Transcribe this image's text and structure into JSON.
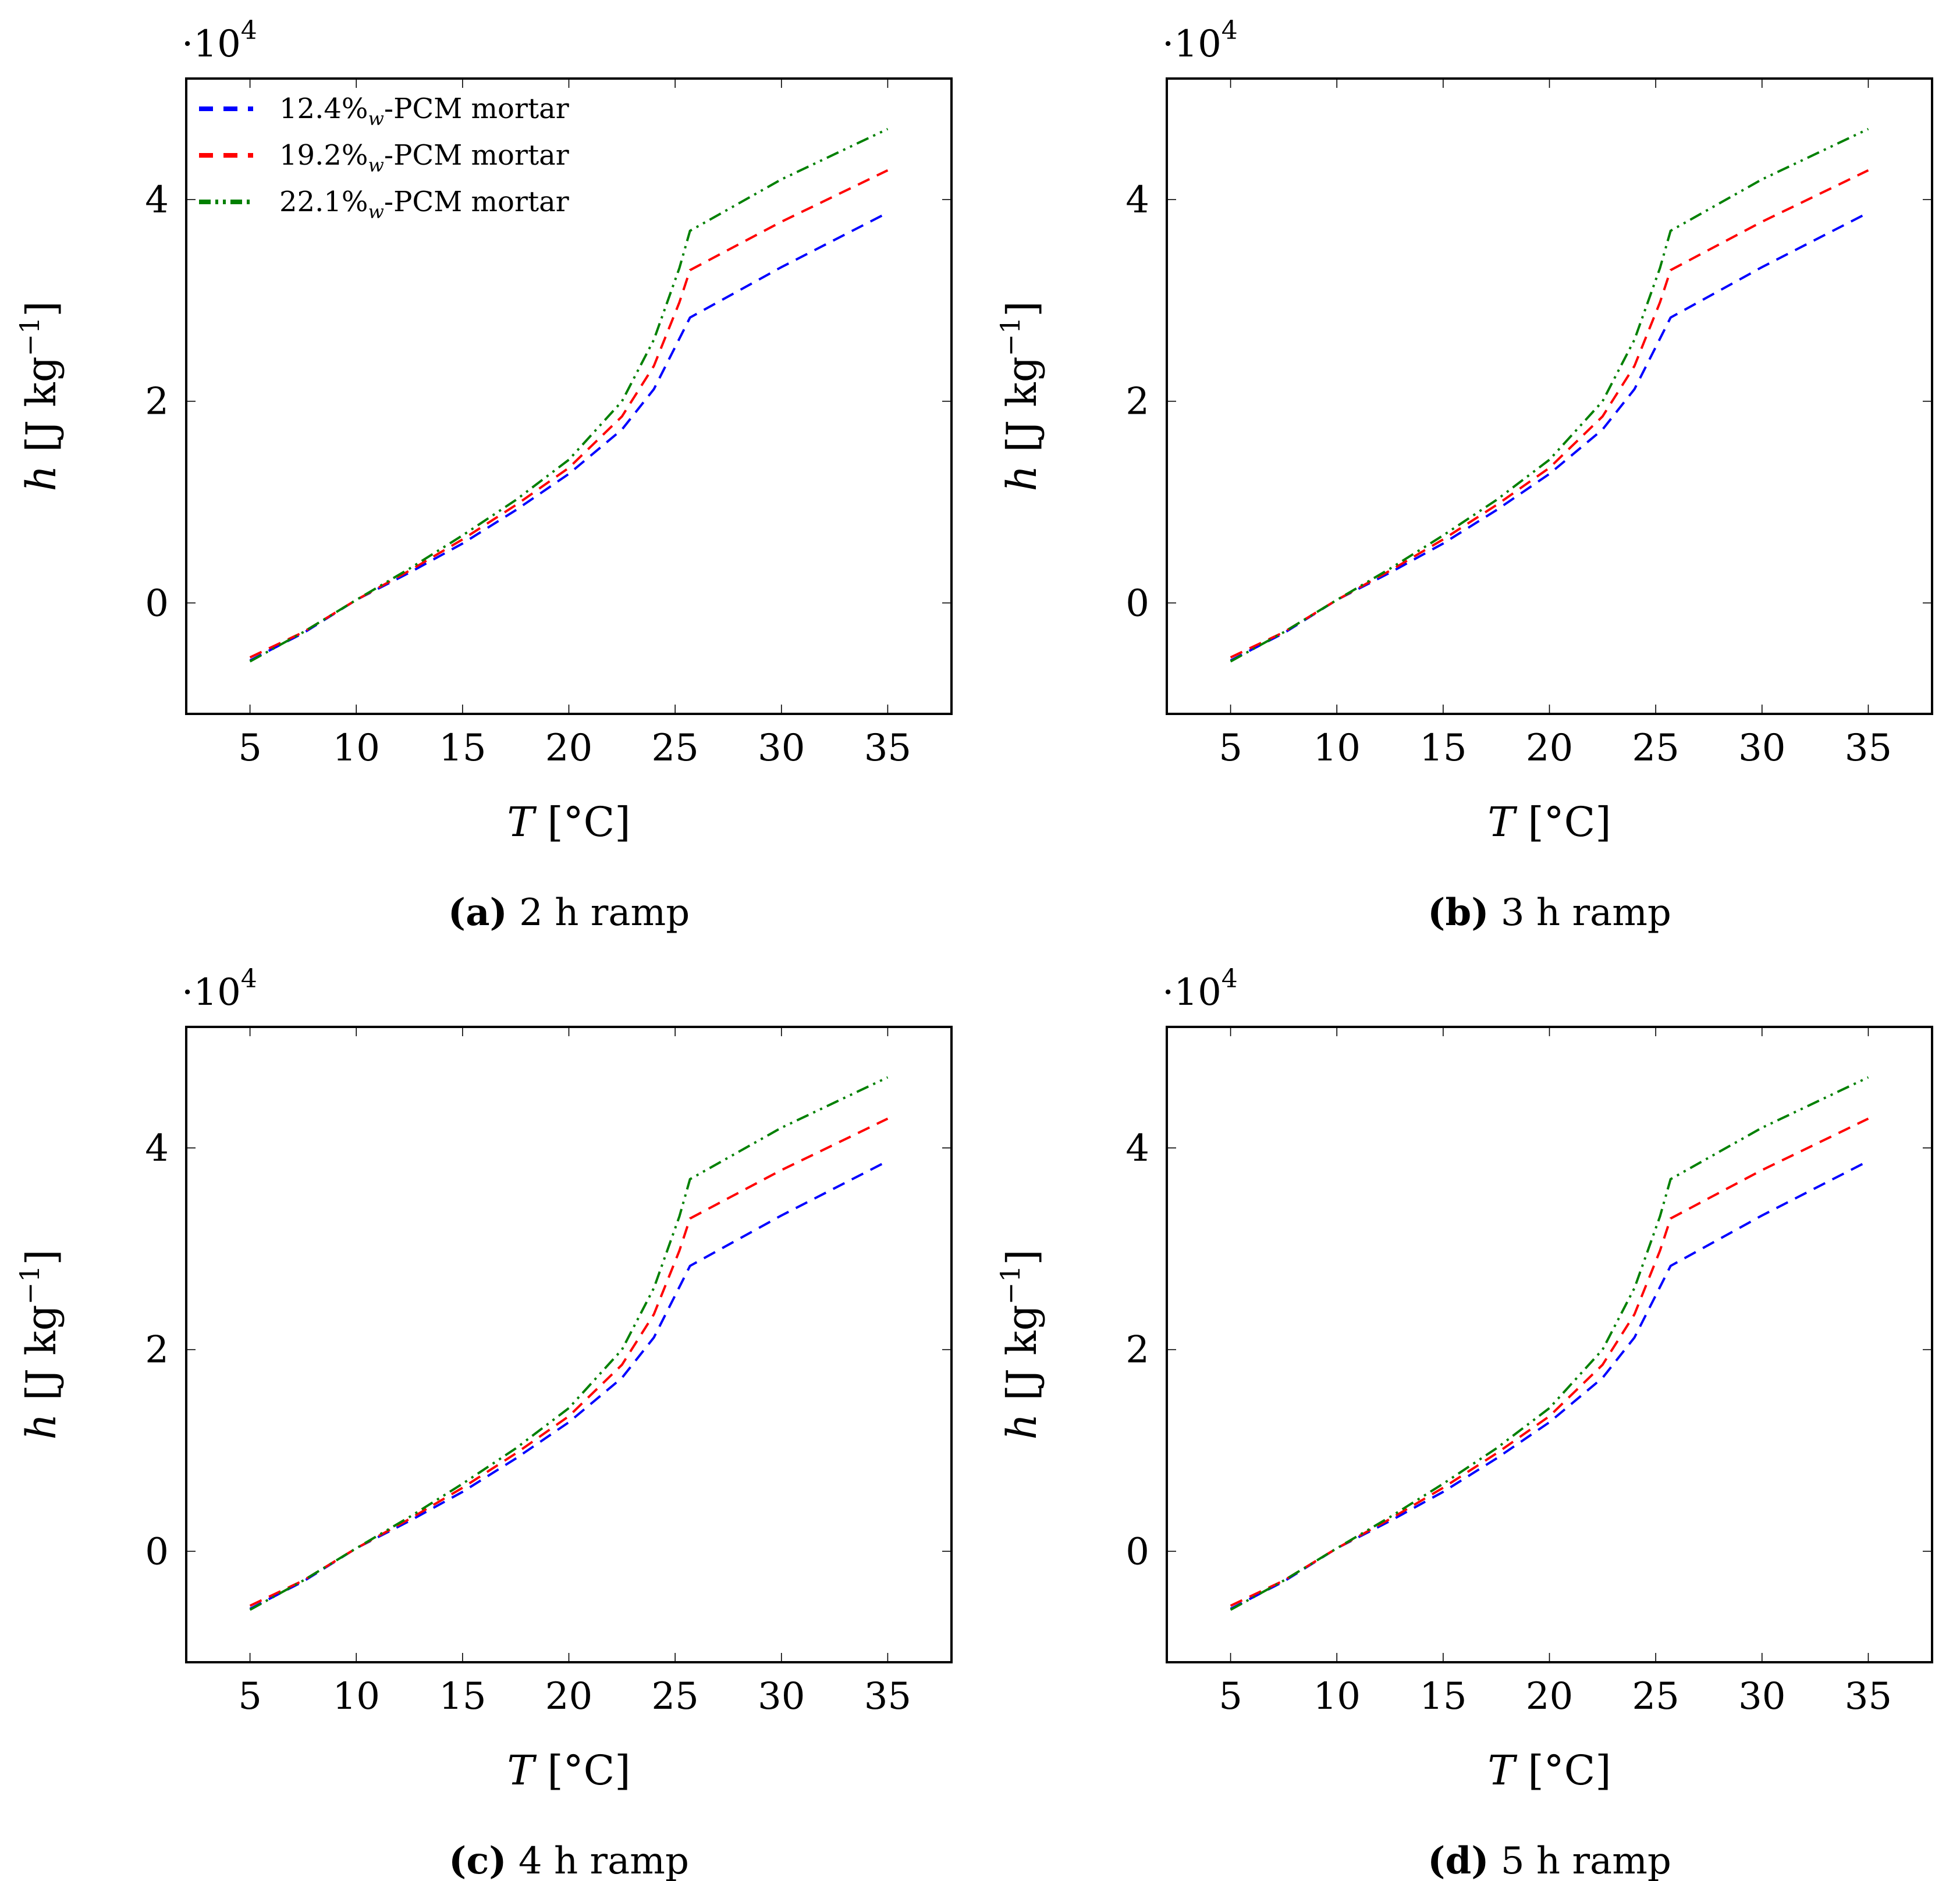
{
  "figure": {
    "colors": {
      "blue": "#0000ff",
      "red": "#ff0000",
      "green": "#008000"
    },
    "series_styles": [
      "dashed",
      "dashed",
      "dash-dot-dot"
    ],
    "y_multiplier": {
      "base": "·10",
      "exponent": "4"
    },
    "y_axis_label": {
      "var": "h",
      "units": "[J kg",
      "exp": "−1",
      "close": "]"
    },
    "x_axis_label": {
      "var": "T",
      "units": "[°C]"
    },
    "legend": [
      {
        "pre": "12.4%",
        "sub": "w",
        "post": "-PCM mortar"
      },
      {
        "pre": "19.2%",
        "sub": "w",
        "post": "-PCM mortar"
      },
      {
        "pre": "22.1%",
        "sub": "w",
        "post": "-PCM mortar"
      }
    ]
  },
  "chart_data": [
    {
      "type": "line",
      "caption_letter": "(a)",
      "caption_text": "2 h ramp",
      "x_ticks": [
        "5",
        "10",
        "15",
        "20",
        "25",
        "30",
        "35"
      ],
      "y_ticks": [
        "0",
        "2",
        "4"
      ],
      "xlim": [
        2,
        38
      ],
      "ylim": [
        -1.1,
        5.2
      ],
      "x": [
        5,
        7.5,
        10,
        12.5,
        15,
        17.5,
        20,
        22.5,
        24,
        25.2,
        25.7,
        30,
        35
      ],
      "series": [
        {
          "name": "12.4%w-PCM mortar",
          "values": [
            -0.57,
            -0.3,
            0.03,
            0.3,
            0.59,
            0.92,
            1.28,
            1.72,
            2.12,
            2.62,
            2.83,
            3.33,
            3.87
          ]
        },
        {
          "name": "19.2%w-PCM mortar",
          "values": [
            -0.54,
            -0.29,
            0.03,
            0.32,
            0.63,
            0.97,
            1.34,
            1.85,
            2.35,
            2.98,
            3.3,
            3.78,
            4.29
          ]
        },
        {
          "name": "22.1%w-PCM mortar",
          "values": [
            -0.58,
            -0.29,
            0.03,
            0.34,
            0.67,
            1.02,
            1.42,
            2.0,
            2.61,
            3.32,
            3.69,
            4.2,
            4.7
          ]
        }
      ]
    },
    {
      "type": "line",
      "caption_letter": "(b)",
      "caption_text": "3 h ramp",
      "x_ticks": [
        "5",
        "10",
        "15",
        "20",
        "25",
        "30",
        "35"
      ],
      "y_ticks": [
        "0",
        "2",
        "4"
      ],
      "xlim": [
        2,
        38
      ],
      "ylim": [
        -1.1,
        5.2
      ],
      "x": [
        5,
        7.5,
        10,
        12.5,
        15,
        17.5,
        20,
        22.5,
        24,
        25.2,
        25.7,
        30,
        35
      ],
      "series": [
        {
          "name": "12.4%w-PCM mortar",
          "values": [
            -0.57,
            -0.3,
            0.03,
            0.3,
            0.59,
            0.92,
            1.28,
            1.72,
            2.12,
            2.62,
            2.83,
            3.33,
            3.87
          ]
        },
        {
          "name": "19.2%w-PCM mortar",
          "values": [
            -0.54,
            -0.29,
            0.03,
            0.32,
            0.63,
            0.97,
            1.34,
            1.85,
            2.35,
            2.98,
            3.3,
            3.78,
            4.29
          ]
        },
        {
          "name": "22.1%w-PCM mortar",
          "values": [
            -0.58,
            -0.29,
            0.03,
            0.34,
            0.67,
            1.02,
            1.42,
            2.0,
            2.61,
            3.32,
            3.69,
            4.2,
            4.7
          ]
        }
      ]
    },
    {
      "type": "line",
      "caption_letter": "(c)",
      "caption_text": "4 h ramp",
      "x_ticks": [
        "5",
        "10",
        "15",
        "20",
        "25",
        "30",
        "35"
      ],
      "y_ticks": [
        "0",
        "2",
        "4"
      ],
      "xlim": [
        2,
        38
      ],
      "ylim": [
        -1.1,
        5.2
      ],
      "x": [
        5,
        7.5,
        10,
        12.5,
        15,
        17.5,
        20,
        22.5,
        24,
        25.2,
        25.7,
        30,
        35
      ],
      "series": [
        {
          "name": "12.4%w-PCM mortar",
          "values": [
            -0.57,
            -0.3,
            0.03,
            0.3,
            0.59,
            0.92,
            1.28,
            1.72,
            2.12,
            2.62,
            2.83,
            3.33,
            3.87
          ]
        },
        {
          "name": "19.2%w-PCM mortar",
          "values": [
            -0.54,
            -0.29,
            0.03,
            0.32,
            0.63,
            0.97,
            1.34,
            1.85,
            2.35,
            2.98,
            3.3,
            3.78,
            4.29
          ]
        },
        {
          "name": "22.1%w-PCM mortar",
          "values": [
            -0.58,
            -0.29,
            0.03,
            0.34,
            0.67,
            1.02,
            1.42,
            2.0,
            2.61,
            3.32,
            3.69,
            4.2,
            4.7
          ]
        }
      ]
    },
    {
      "type": "line",
      "caption_letter": "(d)",
      "caption_text": "5 h ramp",
      "x_ticks": [
        "5",
        "10",
        "15",
        "20",
        "25",
        "30",
        "35"
      ],
      "y_ticks": [
        "0",
        "2",
        "4"
      ],
      "xlim": [
        2,
        38
      ],
      "ylim": [
        -1.1,
        5.2
      ],
      "x": [
        5,
        7.5,
        10,
        12.5,
        15,
        17.5,
        20,
        22.5,
        24,
        25.2,
        25.7,
        30,
        35
      ],
      "series": [
        {
          "name": "12.4%w-PCM mortar",
          "values": [
            -0.57,
            -0.3,
            0.03,
            0.3,
            0.59,
            0.92,
            1.28,
            1.72,
            2.12,
            2.62,
            2.83,
            3.33,
            3.87
          ]
        },
        {
          "name": "19.2%w-PCM mortar",
          "values": [
            -0.54,
            -0.29,
            0.03,
            0.32,
            0.63,
            0.97,
            1.34,
            1.85,
            2.35,
            2.98,
            3.3,
            3.78,
            4.29
          ]
        },
        {
          "name": "22.1%w-PCM mortar",
          "values": [
            -0.58,
            -0.29,
            0.03,
            0.34,
            0.67,
            1.02,
            1.42,
            2.0,
            2.61,
            3.32,
            3.69,
            4.2,
            4.7
          ]
        }
      ]
    }
  ]
}
